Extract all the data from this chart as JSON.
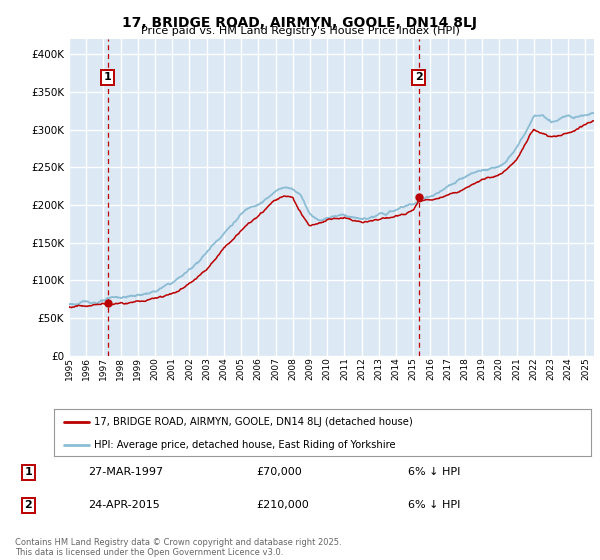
{
  "title": "17, BRIDGE ROAD, AIRMYN, GOOLE, DN14 8LJ",
  "subtitle": "Price paid vs. HM Land Registry's House Price Index (HPI)",
  "ylim": [
    0,
    420000
  ],
  "yticks": [
    0,
    50000,
    100000,
    150000,
    200000,
    250000,
    300000,
    350000,
    400000
  ],
  "xlim": [
    1995,
    2025.5
  ],
  "sale1_date": 1997.24,
  "sale1_price": 70000,
  "sale2_date": 2015.31,
  "sale2_price": 210000,
  "hpi_color": "#8bbcd4",
  "price_color": "#bb0000",
  "bg_color": "#dce8f4",
  "grid_color": "#ffffff",
  "legend_label1": "17, BRIDGE ROAD, AIRMYN, GOOLE, DN14 8LJ (detached house)",
  "legend_label2": "HPI: Average price, detached house, East Riding of Yorkshire",
  "annotation1_date": "27-MAR-1997",
  "annotation1_price": "£70,000",
  "annotation1_hpi": "6% ↓ HPI",
  "annotation2_date": "24-APR-2015",
  "annotation2_price": "£210,000",
  "annotation2_hpi": "6% ↓ HPI",
  "footer": "Contains HM Land Registry data © Crown copyright and database right 2025.\nThis data is licensed under the Open Government Licence v3.0.",
  "hpi_knots": [
    1995,
    1996,
    1997,
    1998,
    1999,
    2000,
    2001,
    2002,
    2003,
    2004,
    2005,
    2006,
    2007,
    2007.5,
    2008,
    2008.5,
    2009,
    2009.5,
    2010,
    2010.5,
    2011,
    2011.5,
    2012,
    2012.5,
    2013,
    2013.5,
    2014,
    2014.5,
    2015,
    2015.5,
    2016,
    2016.5,
    2017,
    2017.5,
    2018,
    2018.5,
    2019,
    2019.5,
    2020,
    2020.5,
    2021,
    2021.5,
    2022,
    2022.5,
    2023,
    2023.5,
    2024,
    2024.5,
    2025,
    2025.5
  ],
  "hpi_vals": [
    68000,
    70000,
    73000,
    75000,
    78000,
    83000,
    93000,
    110000,
    135000,
    163000,
    188000,
    205000,
    220000,
    228000,
    225000,
    218000,
    195000,
    188000,
    192000,
    196000,
    198000,
    196000,
    192000,
    194000,
    196000,
    198000,
    202000,
    206000,
    210000,
    215000,
    220000,
    225000,
    230000,
    235000,
    240000,
    244000,
    248000,
    252000,
    255000,
    265000,
    278000,
    298000,
    318000,
    320000,
    308000,
    312000,
    316000,
    320000,
    325000,
    330000
  ],
  "price_knots": [
    1995,
    1996,
    1997,
    1997.24,
    1998,
    1999,
    2000,
    2001,
    2002,
    2003,
    2004,
    2005,
    2006,
    2007,
    2007.5,
    2008,
    2008.5,
    2009,
    2009.5,
    2010,
    2011,
    2012,
    2013,
    2014,
    2015,
    2015.31,
    2016,
    2017,
    2018,
    2019,
    2020,
    2021,
    2022,
    2023,
    2024,
    2025,
    2025.5
  ],
  "price_vals": [
    65000,
    67000,
    70000,
    70000,
    72000,
    74000,
    79000,
    88000,
    102000,
    125000,
    152000,
    177000,
    195000,
    215000,
    220000,
    218000,
    195000,
    178000,
    183000,
    188000,
    190000,
    185000,
    188000,
    192000,
    200000,
    210000,
    212000,
    220000,
    228000,
    238000,
    242000,
    258000,
    298000,
    290000,
    295000,
    308000,
    312000
  ]
}
